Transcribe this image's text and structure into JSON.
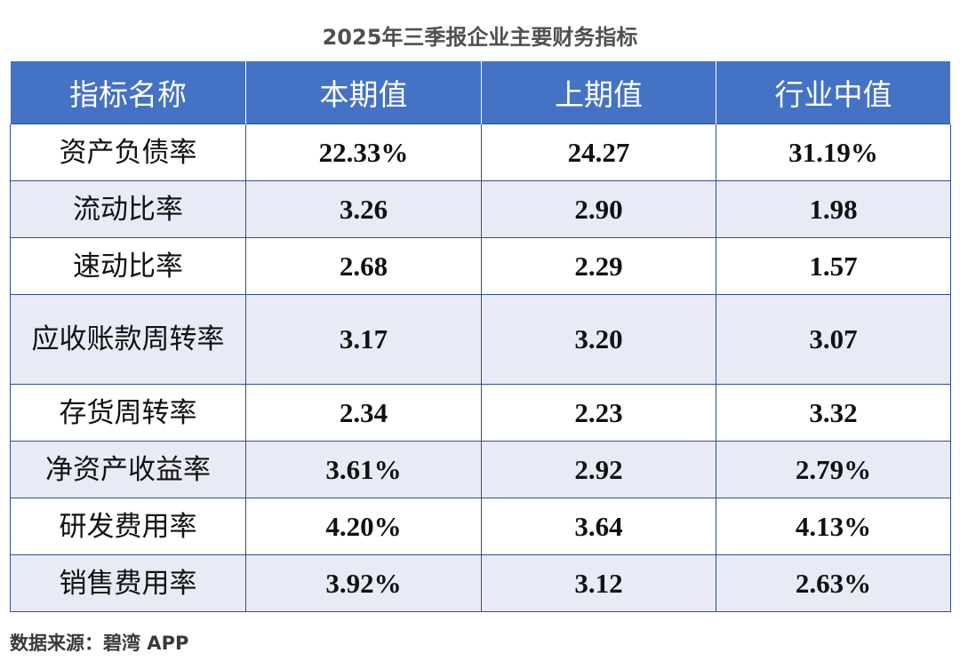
{
  "title": "2025年三季报企业主要财务指标",
  "table": {
    "headers": [
      "指标名称",
      "本期值",
      "上期值",
      "行业中值"
    ],
    "rows": [
      {
        "name": "资产负债率",
        "current": "22.33%",
        "previous": "24.27",
        "industry_median": "31.19%"
      },
      {
        "name": "流动比率",
        "current": "3.26",
        "previous": "2.90",
        "industry_median": "1.98"
      },
      {
        "name": "速动比率",
        "current": "2.68",
        "previous": "2.29",
        "industry_median": "1.57"
      },
      {
        "name": "应收账款周转率",
        "current": "3.17",
        "previous": "3.20",
        "industry_median": "3.07"
      },
      {
        "name": "存货周转率",
        "current": "2.34",
        "previous": "2.23",
        "industry_median": "3.32"
      },
      {
        "name": "净资产收益率",
        "current": "3.61%",
        "previous": "2.92",
        "industry_median": "2.79%"
      },
      {
        "name": "研发费用率",
        "current": "4.20%",
        "previous": "3.64",
        "industry_median": "4.13%"
      },
      {
        "name": "销售费用率",
        "current": "3.92%",
        "previous": "3.12",
        "industry_median": "2.63%"
      }
    ]
  },
  "watermark": "碧湾App",
  "source": "数据来源：碧湾 APP",
  "colors": {
    "header_bg": "#4472c4",
    "header_text": "#ffffff",
    "row_alt_bg": "#e8ebf5",
    "title_text": "#505050"
  }
}
